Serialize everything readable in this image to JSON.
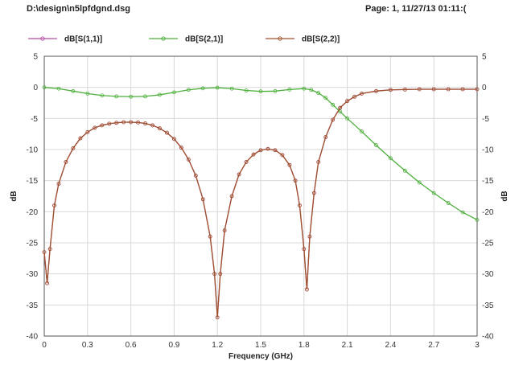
{
  "header": {
    "file_path": "D:\\design\\n5lpfdgnd.dsg",
    "page_info": "Page: 1, 11/27/13 01:11:("
  },
  "colors": {
    "s11": "#b44fa0",
    "s21": "#4caf3a",
    "s22": "#a0522d",
    "grid": "#d9d9d9",
    "axis": "#555555"
  },
  "chart_data": {
    "type": "line",
    "xlabel": "Frequency (GHz)",
    "ylabel": "dB",
    "xlim": [
      0,
      3
    ],
    "ylim": [
      -40,
      5
    ],
    "xticks": [
      0,
      0.3,
      0.6,
      0.9,
      1.2,
      1.5,
      1.8,
      2.1,
      2.4,
      2.7,
      3
    ],
    "xtick_labels": [
      "0",
      "0.3",
      "0.6",
      "0.9",
      "1.2",
      "1.5",
      "1.8",
      "2.1",
      "2.4",
      "2.7",
      "3"
    ],
    "yticks": [
      5,
      0,
      -5,
      -10,
      -15,
      -20,
      -25,
      -30,
      -35,
      -40
    ],
    "ytick_labels": [
      "5",
      "0",
      "-5",
      "-10",
      "-15",
      "-20",
      "-25",
      "-30",
      "-35",
      "-40"
    ],
    "grid": true,
    "legend_position": "top",
    "series": [
      {
        "name": "dB[S(1,1)]",
        "color_key": "s11",
        "points": [
          [
            0.0,
            -26.5
          ],
          [
            0.02,
            -31.5
          ],
          [
            0.04,
            -26
          ],
          [
            0.07,
            -19
          ],
          [
            0.1,
            -15.5
          ],
          [
            0.15,
            -12
          ],
          [
            0.2,
            -9.8
          ],
          [
            0.25,
            -8.2
          ],
          [
            0.3,
            -7.2
          ],
          [
            0.35,
            -6.5
          ],
          [
            0.4,
            -6.1
          ],
          [
            0.45,
            -5.85
          ],
          [
            0.5,
            -5.7
          ],
          [
            0.55,
            -5.6
          ],
          [
            0.6,
            -5.6
          ],
          [
            0.65,
            -5.65
          ],
          [
            0.7,
            -5.8
          ],
          [
            0.75,
            -6.1
          ],
          [
            0.8,
            -6.6
          ],
          [
            0.85,
            -7.3
          ],
          [
            0.9,
            -8.3
          ],
          [
            0.95,
            -9.7
          ],
          [
            1.0,
            -11.6
          ],
          [
            1.05,
            -14.2
          ],
          [
            1.1,
            -18
          ],
          [
            1.15,
            -24
          ],
          [
            1.18,
            -30
          ],
          [
            1.2,
            -37
          ],
          [
            1.22,
            -30
          ],
          [
            1.25,
            -23
          ],
          [
            1.3,
            -17.5
          ],
          [
            1.35,
            -14
          ],
          [
            1.4,
            -12
          ],
          [
            1.45,
            -10.8
          ],
          [
            1.5,
            -10.1
          ],
          [
            1.55,
            -9.9
          ],
          [
            1.6,
            -10.1
          ],
          [
            1.65,
            -10.9
          ],
          [
            1.7,
            -12.5
          ],
          [
            1.74,
            -15
          ],
          [
            1.77,
            -19
          ],
          [
            1.8,
            -26
          ],
          [
            1.82,
            -32.5
          ],
          [
            1.84,
            -24
          ],
          [
            1.87,
            -17
          ],
          [
            1.9,
            -12
          ],
          [
            1.95,
            -8
          ],
          [
            2.0,
            -5.2
          ],
          [
            2.05,
            -3.3
          ],
          [
            2.1,
            -2.2
          ],
          [
            2.15,
            -1.5
          ],
          [
            2.2,
            -1.0
          ],
          [
            2.3,
            -0.6
          ],
          [
            2.4,
            -0.4
          ],
          [
            2.5,
            -0.35
          ],
          [
            2.6,
            -0.3
          ],
          [
            2.7,
            -0.3
          ],
          [
            2.8,
            -0.3
          ],
          [
            2.9,
            -0.3
          ],
          [
            3.0,
            -0.3
          ]
        ]
      },
      {
        "name": "dB[S(2,1)]",
        "color_key": "s21",
        "points": [
          [
            0.0,
            0.0
          ],
          [
            0.1,
            -0.2
          ],
          [
            0.2,
            -0.6
          ],
          [
            0.3,
            -1.0
          ],
          [
            0.4,
            -1.3
          ],
          [
            0.5,
            -1.45
          ],
          [
            0.6,
            -1.5
          ],
          [
            0.7,
            -1.45
          ],
          [
            0.8,
            -1.2
          ],
          [
            0.9,
            -0.8
          ],
          [
            1.0,
            -0.4
          ],
          [
            1.1,
            -0.15
          ],
          [
            1.2,
            -0.05
          ],
          [
            1.3,
            -0.2
          ],
          [
            1.4,
            -0.5
          ],
          [
            1.5,
            -0.65
          ],
          [
            1.6,
            -0.6
          ],
          [
            1.7,
            -0.35
          ],
          [
            1.8,
            -0.2
          ],
          [
            1.85,
            -0.4
          ],
          [
            1.9,
            -0.9
          ],
          [
            1.95,
            -1.7
          ],
          [
            2.0,
            -2.8
          ],
          [
            2.05,
            -3.9
          ],
          [
            2.1,
            -5.0
          ],
          [
            2.2,
            -7.1
          ],
          [
            2.3,
            -9.3
          ],
          [
            2.4,
            -11.4
          ],
          [
            2.5,
            -13.4
          ],
          [
            2.6,
            -15.3
          ],
          [
            2.7,
            -17.0
          ],
          [
            2.8,
            -18.6
          ],
          [
            2.9,
            -20.1
          ],
          [
            3.0,
            -21.3
          ]
        ]
      },
      {
        "name": "dB[S(2,2)]",
        "color_key": "s22",
        "points": [
          [
            0.0,
            -26.5
          ],
          [
            0.02,
            -31.5
          ],
          [
            0.04,
            -26
          ],
          [
            0.07,
            -19
          ],
          [
            0.1,
            -15.5
          ],
          [
            0.15,
            -12
          ],
          [
            0.2,
            -9.8
          ],
          [
            0.25,
            -8.2
          ],
          [
            0.3,
            -7.2
          ],
          [
            0.35,
            -6.5
          ],
          [
            0.4,
            -6.1
          ],
          [
            0.45,
            -5.85
          ],
          [
            0.5,
            -5.7
          ],
          [
            0.55,
            -5.6
          ],
          [
            0.6,
            -5.6
          ],
          [
            0.65,
            -5.65
          ],
          [
            0.7,
            -5.8
          ],
          [
            0.75,
            -6.1
          ],
          [
            0.8,
            -6.6
          ],
          [
            0.85,
            -7.3
          ],
          [
            0.9,
            -8.3
          ],
          [
            0.95,
            -9.7
          ],
          [
            1.0,
            -11.6
          ],
          [
            1.05,
            -14.2
          ],
          [
            1.1,
            -18
          ],
          [
            1.15,
            -24
          ],
          [
            1.18,
            -30
          ],
          [
            1.2,
            -37
          ],
          [
            1.22,
            -30
          ],
          [
            1.25,
            -23
          ],
          [
            1.3,
            -17.5
          ],
          [
            1.35,
            -14
          ],
          [
            1.4,
            -12
          ],
          [
            1.45,
            -10.8
          ],
          [
            1.5,
            -10.1
          ],
          [
            1.55,
            -9.9
          ],
          [
            1.6,
            -10.1
          ],
          [
            1.65,
            -10.9
          ],
          [
            1.7,
            -12.5
          ],
          [
            1.74,
            -15
          ],
          [
            1.77,
            -19
          ],
          [
            1.8,
            -26
          ],
          [
            1.82,
            -32.5
          ],
          [
            1.84,
            -24
          ],
          [
            1.87,
            -17
          ],
          [
            1.9,
            -12
          ],
          [
            1.95,
            -8
          ],
          [
            2.0,
            -5.2
          ],
          [
            2.05,
            -3.3
          ],
          [
            2.1,
            -2.2
          ],
          [
            2.15,
            -1.5
          ],
          [
            2.2,
            -1.0
          ],
          [
            2.3,
            -0.6
          ],
          [
            2.4,
            -0.4
          ],
          [
            2.5,
            -0.35
          ],
          [
            2.6,
            -0.3
          ],
          [
            2.7,
            -0.3
          ],
          [
            2.8,
            -0.3
          ],
          [
            2.9,
            -0.3
          ],
          [
            3.0,
            -0.3
          ]
        ]
      }
    ]
  }
}
